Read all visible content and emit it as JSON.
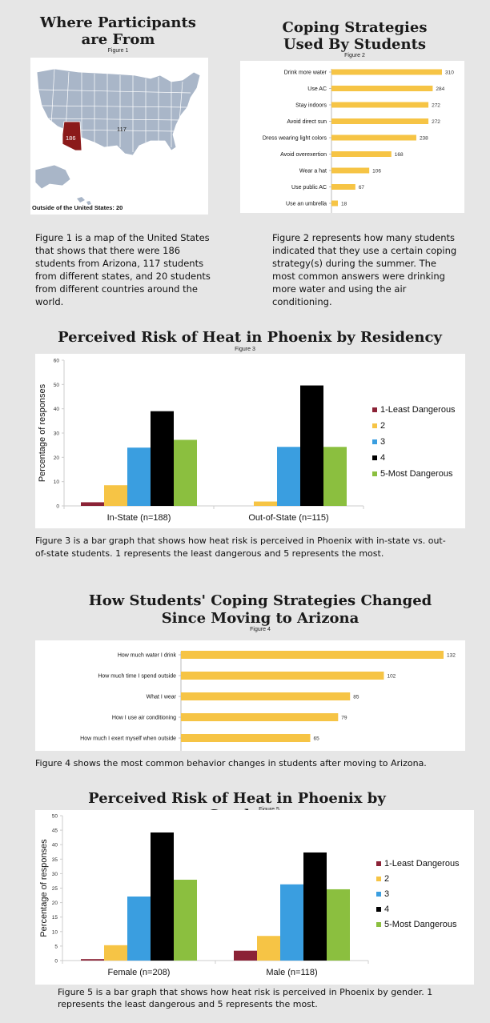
{
  "fig1": {
    "title": "Where Participants are From",
    "caption": "Figure 1",
    "arizona_label": "186",
    "other_states_label": "117",
    "outside_label": "Outside of the United States: 20",
    "description": "Figure 1 is a map of the United States that shows that there were 186 students from Arizona, 117 students from different states, and 20 students from different countries around the world.",
    "colors": {
      "states": "#a9b6c8",
      "arizona": "#8b1a1a",
      "border": "#ffffff"
    }
  },
  "fig2": {
    "title": "Coping Strategies Used By Students",
    "caption": "Figure 2",
    "description": "Figure 2 represents how many students indicated that they use a certain coping strategy(s) during the summer. The most common answers were drinking more water and using the air conditioning."
  },
  "fig3": {
    "title": "Perceived Risk of Heat in Phoenix by Residency",
    "caption": "Figure 3",
    "description": "Figure 3 is a bar graph that shows how heat risk is perceived in Phoenix with in-state vs. out-of-state students. 1 represents the least dangerous and 5 represents the most."
  },
  "fig4": {
    "title": "How Students' Coping Strategies Changed Since Moving to Arizona",
    "caption": "Figure 4",
    "description": "Figure 4 shows the most common behavior changes in students after moving to Arizona."
  },
  "fig5": {
    "title": "Perceived Risk of Heat in Phoenix by Gender",
    "caption": "Figure 5",
    "description": "Figure 5 is a bar graph that shows how heat risk is perceived in Phoenix by gender. 1 represents the least dangerous and 5 represents the most."
  },
  "chart_data": [
    {
      "id": "fig2",
      "type": "bar",
      "orientation": "horizontal",
      "categories": [
        "Drink more water",
        "Use AC",
        "Stay indoors",
        "Avoid direct sun",
        "Dress wearing light colors",
        "Avoid overexertion",
        "Wear a hat",
        "Use public AC",
        "Use an umbrella"
      ],
      "values": [
        310,
        284,
        272,
        272,
        238,
        168,
        106,
        67,
        18
      ],
      "xlim": [
        0,
        310
      ],
      "color": "#f6c445"
    },
    {
      "id": "fig3",
      "type": "bar",
      "categories": [
        "In-State (n=188)",
        "Out-of-State (n=115)"
      ],
      "series": [
        {
          "name": "1-Least Dangerous",
          "values": [
            1.5,
            0
          ],
          "color": "#8b2236"
        },
        {
          "name": "2",
          "values": [
            8.5,
            1.8
          ],
          "color": "#f6c445"
        },
        {
          "name": "3",
          "values": [
            24,
            24.3
          ],
          "color": "#3a9ee0"
        },
        {
          "name": "4",
          "values": [
            39,
            49.6
          ],
          "color": "#000000"
        },
        {
          "name": "5-Most Dangerous",
          "values": [
            27.2,
            24.3
          ],
          "color": "#8bbf3f"
        }
      ],
      "ylabel": "Percentage of responses",
      "ylim": [
        0,
        60
      ],
      "yticks": [
        0,
        10,
        20,
        30,
        40,
        50,
        60
      ],
      "legend": "right"
    },
    {
      "id": "fig4",
      "type": "bar",
      "orientation": "horizontal",
      "categories": [
        "How much water I drink",
        "How much time I spend outside",
        "What I wear",
        "How I use air conditioning",
        "How much I exert myself when outside"
      ],
      "values": [
        132,
        102,
        85,
        79,
        65
      ],
      "xlim": [
        0,
        132
      ],
      "color": "#f6c445"
    },
    {
      "id": "fig5",
      "type": "bar",
      "categories": [
        "Female (n=208)",
        "Male (n=118)"
      ],
      "series": [
        {
          "name": "1-Least Dangerous",
          "values": [
            0.5,
            3.4
          ],
          "color": "#8b2236"
        },
        {
          "name": "2",
          "values": [
            5.3,
            8.5
          ],
          "color": "#f6c445"
        },
        {
          "name": "3",
          "values": [
            22.1,
            26.3
          ],
          "color": "#3a9ee0"
        },
        {
          "name": "4",
          "values": [
            44.2,
            37.3
          ],
          "color": "#000000"
        },
        {
          "name": "5-Most Dangerous",
          "values": [
            27.9,
            24.6
          ],
          "color": "#8bbf3f"
        }
      ],
      "ylabel": "Percentage of responses",
      "ylim": [
        0,
        50
      ],
      "yticks": [
        0,
        5,
        10,
        15,
        20,
        25,
        30,
        35,
        40,
        45,
        50
      ],
      "legend": "right"
    }
  ]
}
